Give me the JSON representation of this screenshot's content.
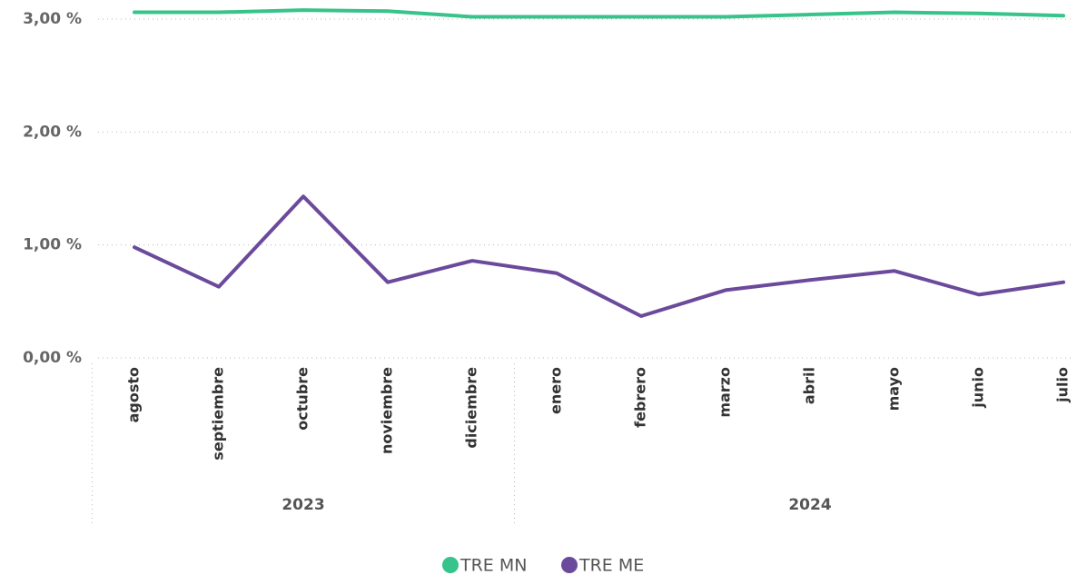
{
  "chart_data": {
    "type": "line",
    "categories": [
      "agosto",
      "septiembre",
      "octubre",
      "noviembre",
      "diciembre",
      "enero",
      "febrero",
      "marzo",
      "abril",
      "mayo",
      "junio",
      "julio"
    ],
    "groups": [
      {
        "label": "2023",
        "span": 5
      },
      {
        "label": "2024",
        "span": 7
      }
    ],
    "series": [
      {
        "name": "TRE MN",
        "color": "#37c38a",
        "values": [
          3.06,
          3.06,
          3.08,
          3.07,
          3.02,
          3.02,
          3.02,
          3.02,
          3.04,
          3.06,
          3.05,
          3.03
        ]
      },
      {
        "name": "TRE ME",
        "color": "#6b4a9c",
        "values": [
          0.98,
          0.63,
          1.43,
          0.67,
          0.86,
          0.75,
          0.37,
          0.6,
          0.69,
          0.77,
          0.56,
          0.67
        ]
      }
    ],
    "ylim": [
      0,
      3.1
    ],
    "yticks": [
      {
        "value": 0,
        "label": "0,00 %"
      },
      {
        "value": 1,
        "label": "1,00 %"
      },
      {
        "value": 2,
        "label": "2,00 %"
      },
      {
        "value": 3,
        "label": "3,00 %"
      }
    ],
    "grid": true,
    "legend": "bottom"
  }
}
